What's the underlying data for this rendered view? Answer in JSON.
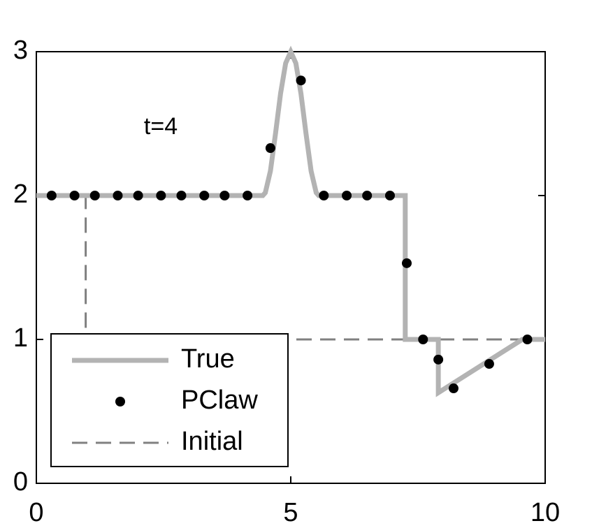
{
  "chart_data": {
    "type": "line",
    "annotation": "t=4",
    "xlim": [
      0,
      10
    ],
    "xticks": [
      0,
      5,
      10
    ],
    "ylim": [
      0,
      3
    ],
    "yticks": [
      0,
      1,
      2,
      3
    ],
    "legend": "lower left",
    "series": [
      {
        "name": "True",
        "color": "#b3b3b3",
        "style": "solid",
        "x": [
          0,
          4.45,
          4.5,
          4.6,
          4.7,
          4.8,
          4.9,
          5,
          5.1,
          5.2,
          5.3,
          5.4,
          5.5,
          5.55,
          7.25,
          7.25,
          7.9,
          7.9,
          9.55,
          10
        ],
        "values": [
          2,
          2,
          2.02,
          2.17,
          2.43,
          2.71,
          2.92,
          3,
          2.92,
          2.71,
          2.43,
          2.17,
          2.02,
          2,
          2,
          1,
          1,
          0.63,
          1,
          1
        ]
      },
      {
        "name": "PClaw",
        "color": "#000000",
        "style": "dots",
        "x": [
          0.3,
          0.75,
          1.15,
          1.6,
          2,
          2.45,
          2.85,
          3.3,
          3.7,
          4.15,
          4.6,
          5.2,
          5.65,
          6.1,
          6.5,
          6.95,
          7.28,
          7.6,
          7.9,
          8.2,
          8.9,
          9.65
        ],
        "values": [
          2,
          2,
          2,
          2,
          2,
          2,
          2,
          2,
          2,
          2,
          2.33,
          2.8,
          2,
          2,
          2,
          2,
          1.53,
          1,
          0.86,
          0.66,
          0.83,
          1
        ]
      },
      {
        "name": "Initial",
        "color": "#808080",
        "style": "dashed",
        "x": [
          0,
          0.97,
          0.97,
          10
        ],
        "values": [
          2,
          2,
          1,
          1
        ]
      }
    ]
  }
}
